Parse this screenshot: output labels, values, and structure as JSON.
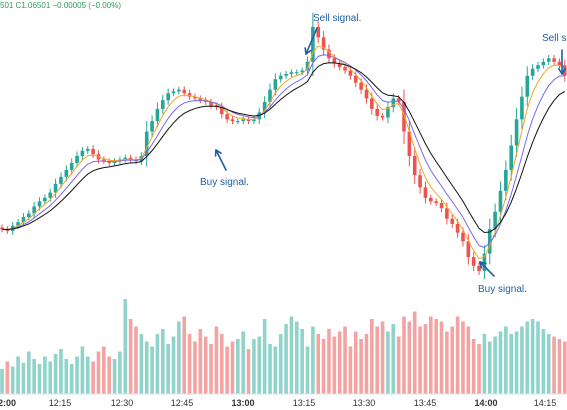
{
  "header": {
    "ohlc_readout": "501  C1.06501  −0.00005 (−0.00%)"
  },
  "colors": {
    "up": "#26a69a",
    "down": "#ef5350",
    "volume_up": "#8fd3cb",
    "volume_down": "#f4a3a3",
    "ma_fast": "#f5a623",
    "ma_mid": "#7b68ee",
    "ma_slow": "#111111",
    "annotation": "#1f5fa8"
  },
  "annotations": [
    {
      "id": "sell-1",
      "text": "Sell signal."
    },
    {
      "id": "buy-1",
      "text": "Buy signal."
    },
    {
      "id": "buy-2",
      "text": "Buy signal."
    },
    {
      "id": "sell-2",
      "text": "Sell s"
    }
  ],
  "chart_data": {
    "type": "candlestick",
    "price_axis_visible": false,
    "grid": false,
    "x_ticks": [
      {
        "label": "2:00",
        "bold": true
      },
      {
        "label": "12:15",
        "bold": false
      },
      {
        "label": "12:30",
        "bold": false
      },
      {
        "label": "12:45",
        "bold": false
      },
      {
        "label": "13:00",
        "bold": true
      },
      {
        "label": "13:15",
        "bold": false
      },
      {
        "label": "13:30",
        "bold": false
      },
      {
        "label": "13:45",
        "bold": false
      },
      {
        "label": "14:00",
        "bold": true
      },
      {
        "label": "14:15",
        "bold": false
      }
    ],
    "close": [
      62,
      61,
      64,
      66,
      69,
      71,
      75,
      78,
      80,
      83,
      88,
      92,
      96,
      100,
      104,
      107,
      108,
      105,
      102,
      101,
      100,
      101,
      102,
      103,
      102,
      101,
      104,
      118,
      124,
      131,
      136,
      140,
      141,
      142,
      140,
      138,
      137,
      136,
      135,
      133,
      132,
      128,
      125,
      124,
      124,
      125,
      124,
      125,
      129,
      135,
      142,
      148,
      150,
      151,
      152,
      152,
      153,
      158,
      178,
      172,
      165,
      160,
      157,
      155,
      153,
      150,
      146,
      142,
      137,
      131,
      127,
      126,
      132,
      137,
      135,
      118,
      104,
      93,
      86,
      80,
      78,
      77,
      74,
      68,
      65,
      60,
      55,
      46,
      41,
      38,
      48,
      62,
      72,
      84,
      96,
      110,
      125,
      138,
      150,
      154,
      156,
      158,
      160,
      158,
      156,
      150
    ],
    "volume": [
      20,
      26,
      22,
      30,
      25,
      34,
      28,
      24,
      30,
      26,
      32,
      36,
      28,
      24,
      30,
      38,
      30,
      26,
      34,
      38,
      30,
      28,
      34,
      76,
      60,
      54,
      48,
      42,
      38,
      48,
      52,
      40,
      46,
      58,
      62,
      48,
      42,
      52,
      46,
      40,
      54,
      48,
      38,
      42,
      44,
      50,
      36,
      44,
      46,
      60,
      40,
      38,
      48,
      56,
      62,
      58,
      52,
      38,
      54,
      48,
      44,
      52,
      46,
      50,
      54,
      38,
      50,
      44,
      48,
      60,
      54,
      58,
      50,
      56,
      46,
      62,
      58,
      66,
      54,
      56,
      62,
      60,
      58,
      50,
      54,
      62,
      58,
      54,
      44,
      40,
      48,
      42,
      46,
      50,
      54,
      48,
      50,
      54,
      58,
      60,
      58,
      52,
      48,
      46,
      44,
      42
    ]
  }
}
